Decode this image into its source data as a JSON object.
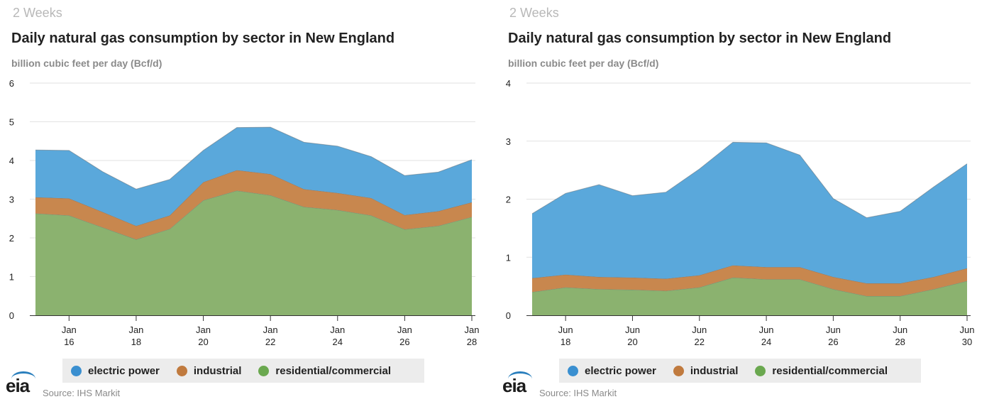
{
  "colors": {
    "electric_power": "#5aa8db",
    "industrial": "#c8874e",
    "residential_commercial": "#8bb26f",
    "electric_power_legend": "#3a8fd0",
    "industrial_legend": "#c07a3e",
    "residential_commercial_legend": "#6aa84f"
  },
  "chart_data": [
    {
      "type": "area",
      "stacked": true,
      "period_label": "2 Weeks",
      "title": "Daily natural gas consumption by sector in New England",
      "ylabel": "billion cubic feet per day (Bcf/d)",
      "ylim": [
        0,
        6
      ],
      "yticks": [
        0,
        1,
        2,
        3,
        4,
        5,
        6
      ],
      "grid": true,
      "legend_position": "bottom",
      "x": [
        15,
        16,
        17,
        18,
        19,
        20,
        21,
        22,
        23,
        24,
        25,
        26,
        27,
        28
      ],
      "xtick_values": [
        16,
        18,
        20,
        22,
        24,
        26,
        28
      ],
      "xtick_month": [
        "Jan",
        "Jan",
        "Jan",
        "Jan",
        "Jan",
        "Jan",
        "Jan"
      ],
      "xtick_day": [
        "16",
        "18",
        "20",
        "22",
        "24",
        "26",
        "28"
      ],
      "series": [
        {
          "name": "residential/commercial",
          "values": [
            2.63,
            2.58,
            2.27,
            1.96,
            2.23,
            2.97,
            3.22,
            3.1,
            2.8,
            2.72,
            2.58,
            2.22,
            2.31,
            2.54
          ]
        },
        {
          "name": "industrial",
          "values": [
            0.42,
            0.44,
            0.4,
            0.35,
            0.35,
            0.47,
            0.53,
            0.55,
            0.46,
            0.44,
            0.45,
            0.37,
            0.38,
            0.38
          ]
        },
        {
          "name": "electric power",
          "values": [
            1.22,
            1.24,
            1.04,
            0.95,
            0.93,
            0.82,
            1.1,
            1.21,
            1.21,
            1.21,
            1.07,
            1.02,
            1.01,
            1.1
          ]
        }
      ],
      "legend": [
        "electric power",
        "industrial",
        "residential/commercial"
      ],
      "source": "Source: IHS Markit",
      "logo": "eia"
    },
    {
      "type": "area",
      "stacked": true,
      "period_label": "2 Weeks",
      "title": "Daily natural gas consumption by sector in New England",
      "ylabel": "billion cubic feet per day (Bcf/d)",
      "ylim": [
        0,
        4
      ],
      "yticks": [
        0,
        1,
        2,
        3,
        4
      ],
      "grid": true,
      "legend_position": "bottom",
      "x": [
        17,
        18,
        19,
        20,
        21,
        22,
        23,
        24,
        25,
        26,
        27,
        28,
        29,
        30
      ],
      "xtick_values": [
        18,
        20,
        22,
        24,
        26,
        28,
        30
      ],
      "xtick_month": [
        "Jun",
        "Jun",
        "Jun",
        "Jun",
        "Jun",
        "Jun",
        "Jun"
      ],
      "xtick_day": [
        "18",
        "20",
        "22",
        "24",
        "26",
        "28",
        "30"
      ],
      "series": [
        {
          "name": "residential/commercial",
          "values": [
            0.4,
            0.48,
            0.45,
            0.44,
            0.42,
            0.48,
            0.65,
            0.62,
            0.62,
            0.45,
            0.33,
            0.33,
            0.45,
            0.59
          ]
        },
        {
          "name": "industrial",
          "values": [
            0.24,
            0.22,
            0.21,
            0.21,
            0.21,
            0.21,
            0.21,
            0.21,
            0.21,
            0.21,
            0.22,
            0.22,
            0.21,
            0.22
          ]
        },
        {
          "name": "electric power",
          "values": [
            1.11,
            1.4,
            1.59,
            1.41,
            1.49,
            1.83,
            2.12,
            2.14,
            1.93,
            1.35,
            1.13,
            1.24,
            1.55,
            1.8
          ]
        }
      ],
      "legend": [
        "electric power",
        "industrial",
        "residential/commercial"
      ],
      "source": "Source: IHS Markit",
      "logo": "eia"
    }
  ]
}
